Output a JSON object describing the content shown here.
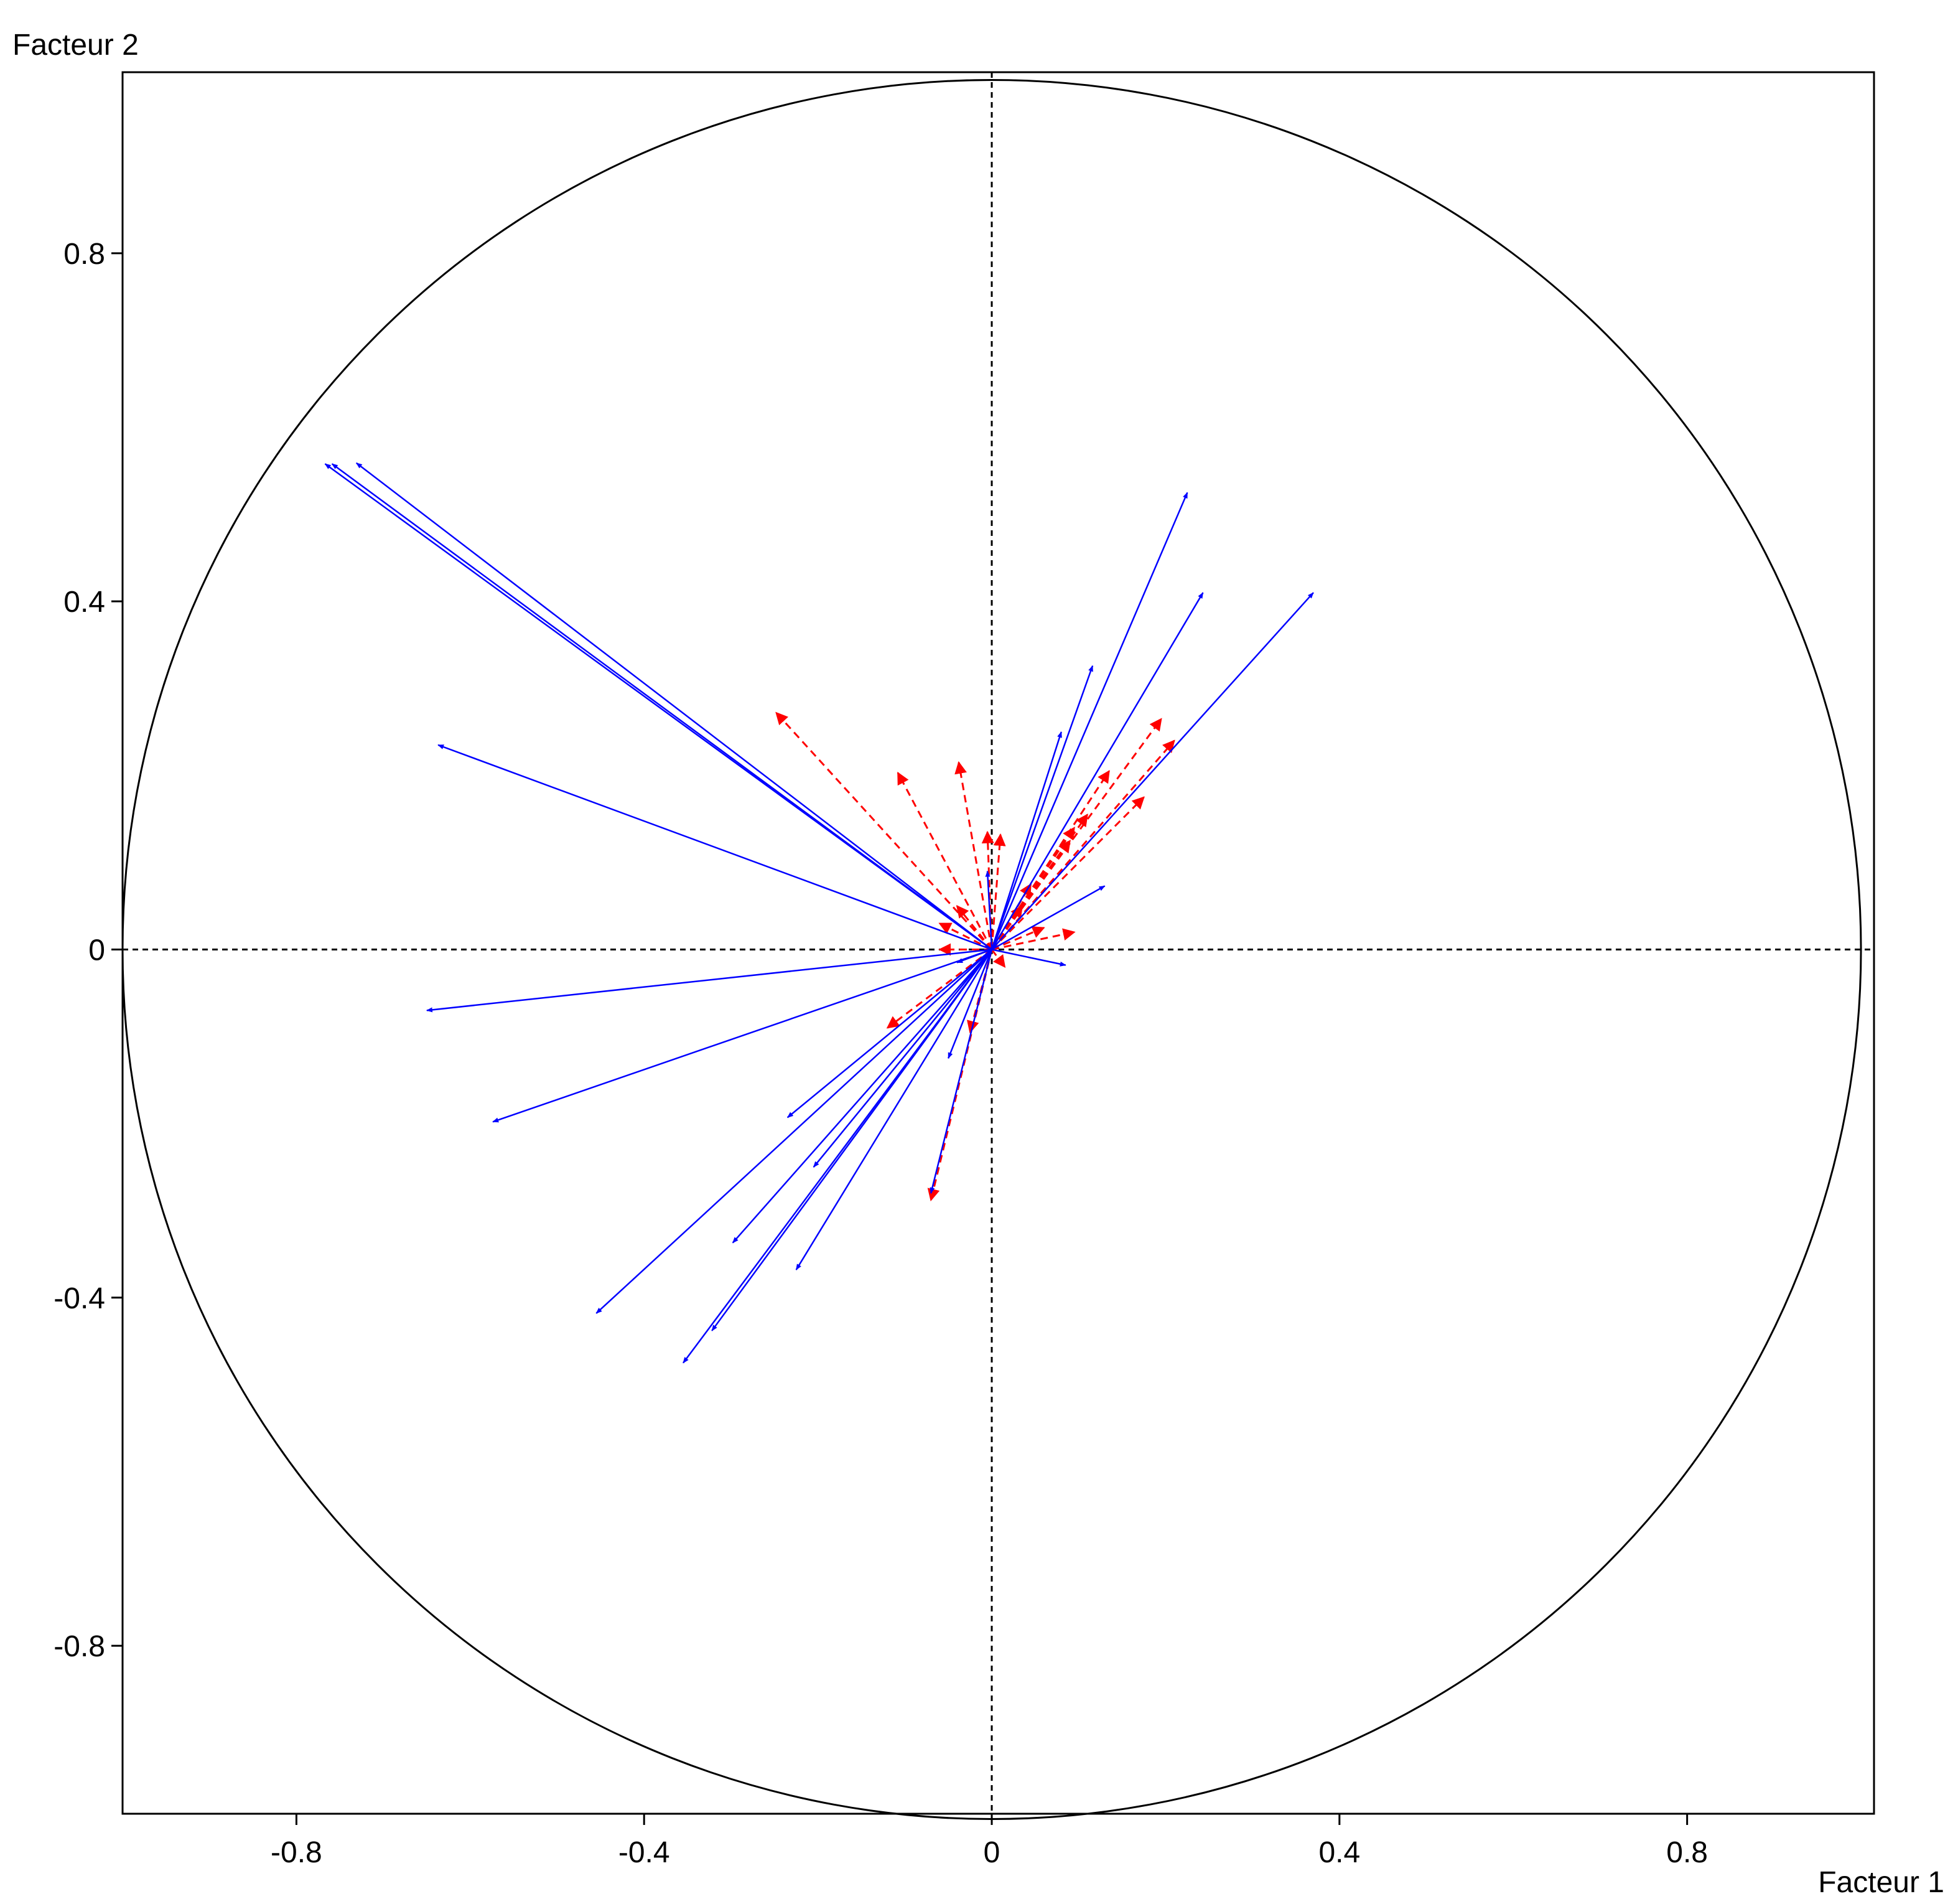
{
  "chart_data": {
    "type": "scatter",
    "subtype": "correlation-circle",
    "title": "",
    "xlabel": "Facteur 1",
    "ylabel": "Facteur 2",
    "xlim": [
      -1.0,
      1.015
    ],
    "ylim": [
      -0.993,
      1.008
    ],
    "xticks": [
      -0.8,
      -0.4,
      0,
      0.4,
      0.8
    ],
    "yticks": [
      -0.8,
      -0.4,
      0,
      0.4,
      0.8
    ],
    "xtick_labels": [
      "-0.8",
      "-0.4",
      "0",
      "0.4",
      "0.8"
    ],
    "ytick_labels": [
      "-0.8",
      "-0.4",
      "0",
      "0.4",
      "0.8"
    ],
    "unit_circle": true,
    "reference_lines": "dashed at x=0 and y=0",
    "grid": false,
    "legend": "none",
    "colors": {
      "active": "#0000ff",
      "supplementary": "#ff0000",
      "frame": "#000000"
    },
    "series": [
      {
        "style": "solid",
        "color": "#0000ff",
        "points": [
          [
            -0.767,
            0.558
          ],
          [
            -0.759,
            0.558
          ],
          [
            -0.731,
            0.559
          ],
          [
            -0.637,
            0.235
          ],
          [
            -0.65,
            -0.07
          ],
          [
            -0.574,
            -0.198
          ],
          [
            -0.455,
            -0.418
          ],
          [
            -0.355,
            -0.475
          ],
          [
            -0.322,
            -0.438
          ],
          [
            -0.298,
            -0.337
          ],
          [
            -0.235,
            -0.193
          ],
          [
            -0.205,
            -0.25
          ],
          [
            -0.225,
            -0.368
          ],
          [
            -0.07,
            -0.28
          ],
          [
            -0.05,
            -0.125
          ],
          [
            -0.04,
            -0.015
          ],
          [
            -0.005,
            0.09
          ],
          [
            0.085,
            -0.018
          ],
          [
            0.13,
            0.073
          ],
          [
            0.08,
            0.25
          ],
          [
            0.116,
            0.326
          ],
          [
            0.225,
            0.525
          ],
          [
            0.243,
            0.41
          ],
          [
            0.37,
            0.41
          ]
        ]
      },
      {
        "style": "dashed",
        "color": "#ff0000",
        "points": [
          [
            -0.248,
            0.272
          ],
          [
            -0.108,
            0.203
          ],
          [
            -0.038,
            0.215
          ],
          [
            -0.005,
            0.135
          ],
          [
            0.01,
            0.132
          ],
          [
            -0.04,
            0.05
          ],
          [
            -0.06,
            0.03
          ],
          [
            -0.06,
            0.0
          ],
          [
            -0.12,
            -0.09
          ],
          [
            -0.07,
            -0.288
          ],
          [
            -0.025,
            -0.095
          ],
          [
            0.015,
            -0.02
          ],
          [
            0.06,
            0.025
          ],
          [
            0.095,
            0.02
          ],
          [
            0.035,
            0.05
          ],
          [
            0.045,
            0.075
          ],
          [
            0.09,
            0.125
          ],
          [
            0.095,
            0.14
          ],
          [
            0.11,
            0.155
          ],
          [
            0.135,
            0.205
          ],
          [
            0.175,
            0.175
          ],
          [
            0.195,
            0.265
          ],
          [
            0.21,
            0.24
          ]
        ]
      }
    ]
  }
}
